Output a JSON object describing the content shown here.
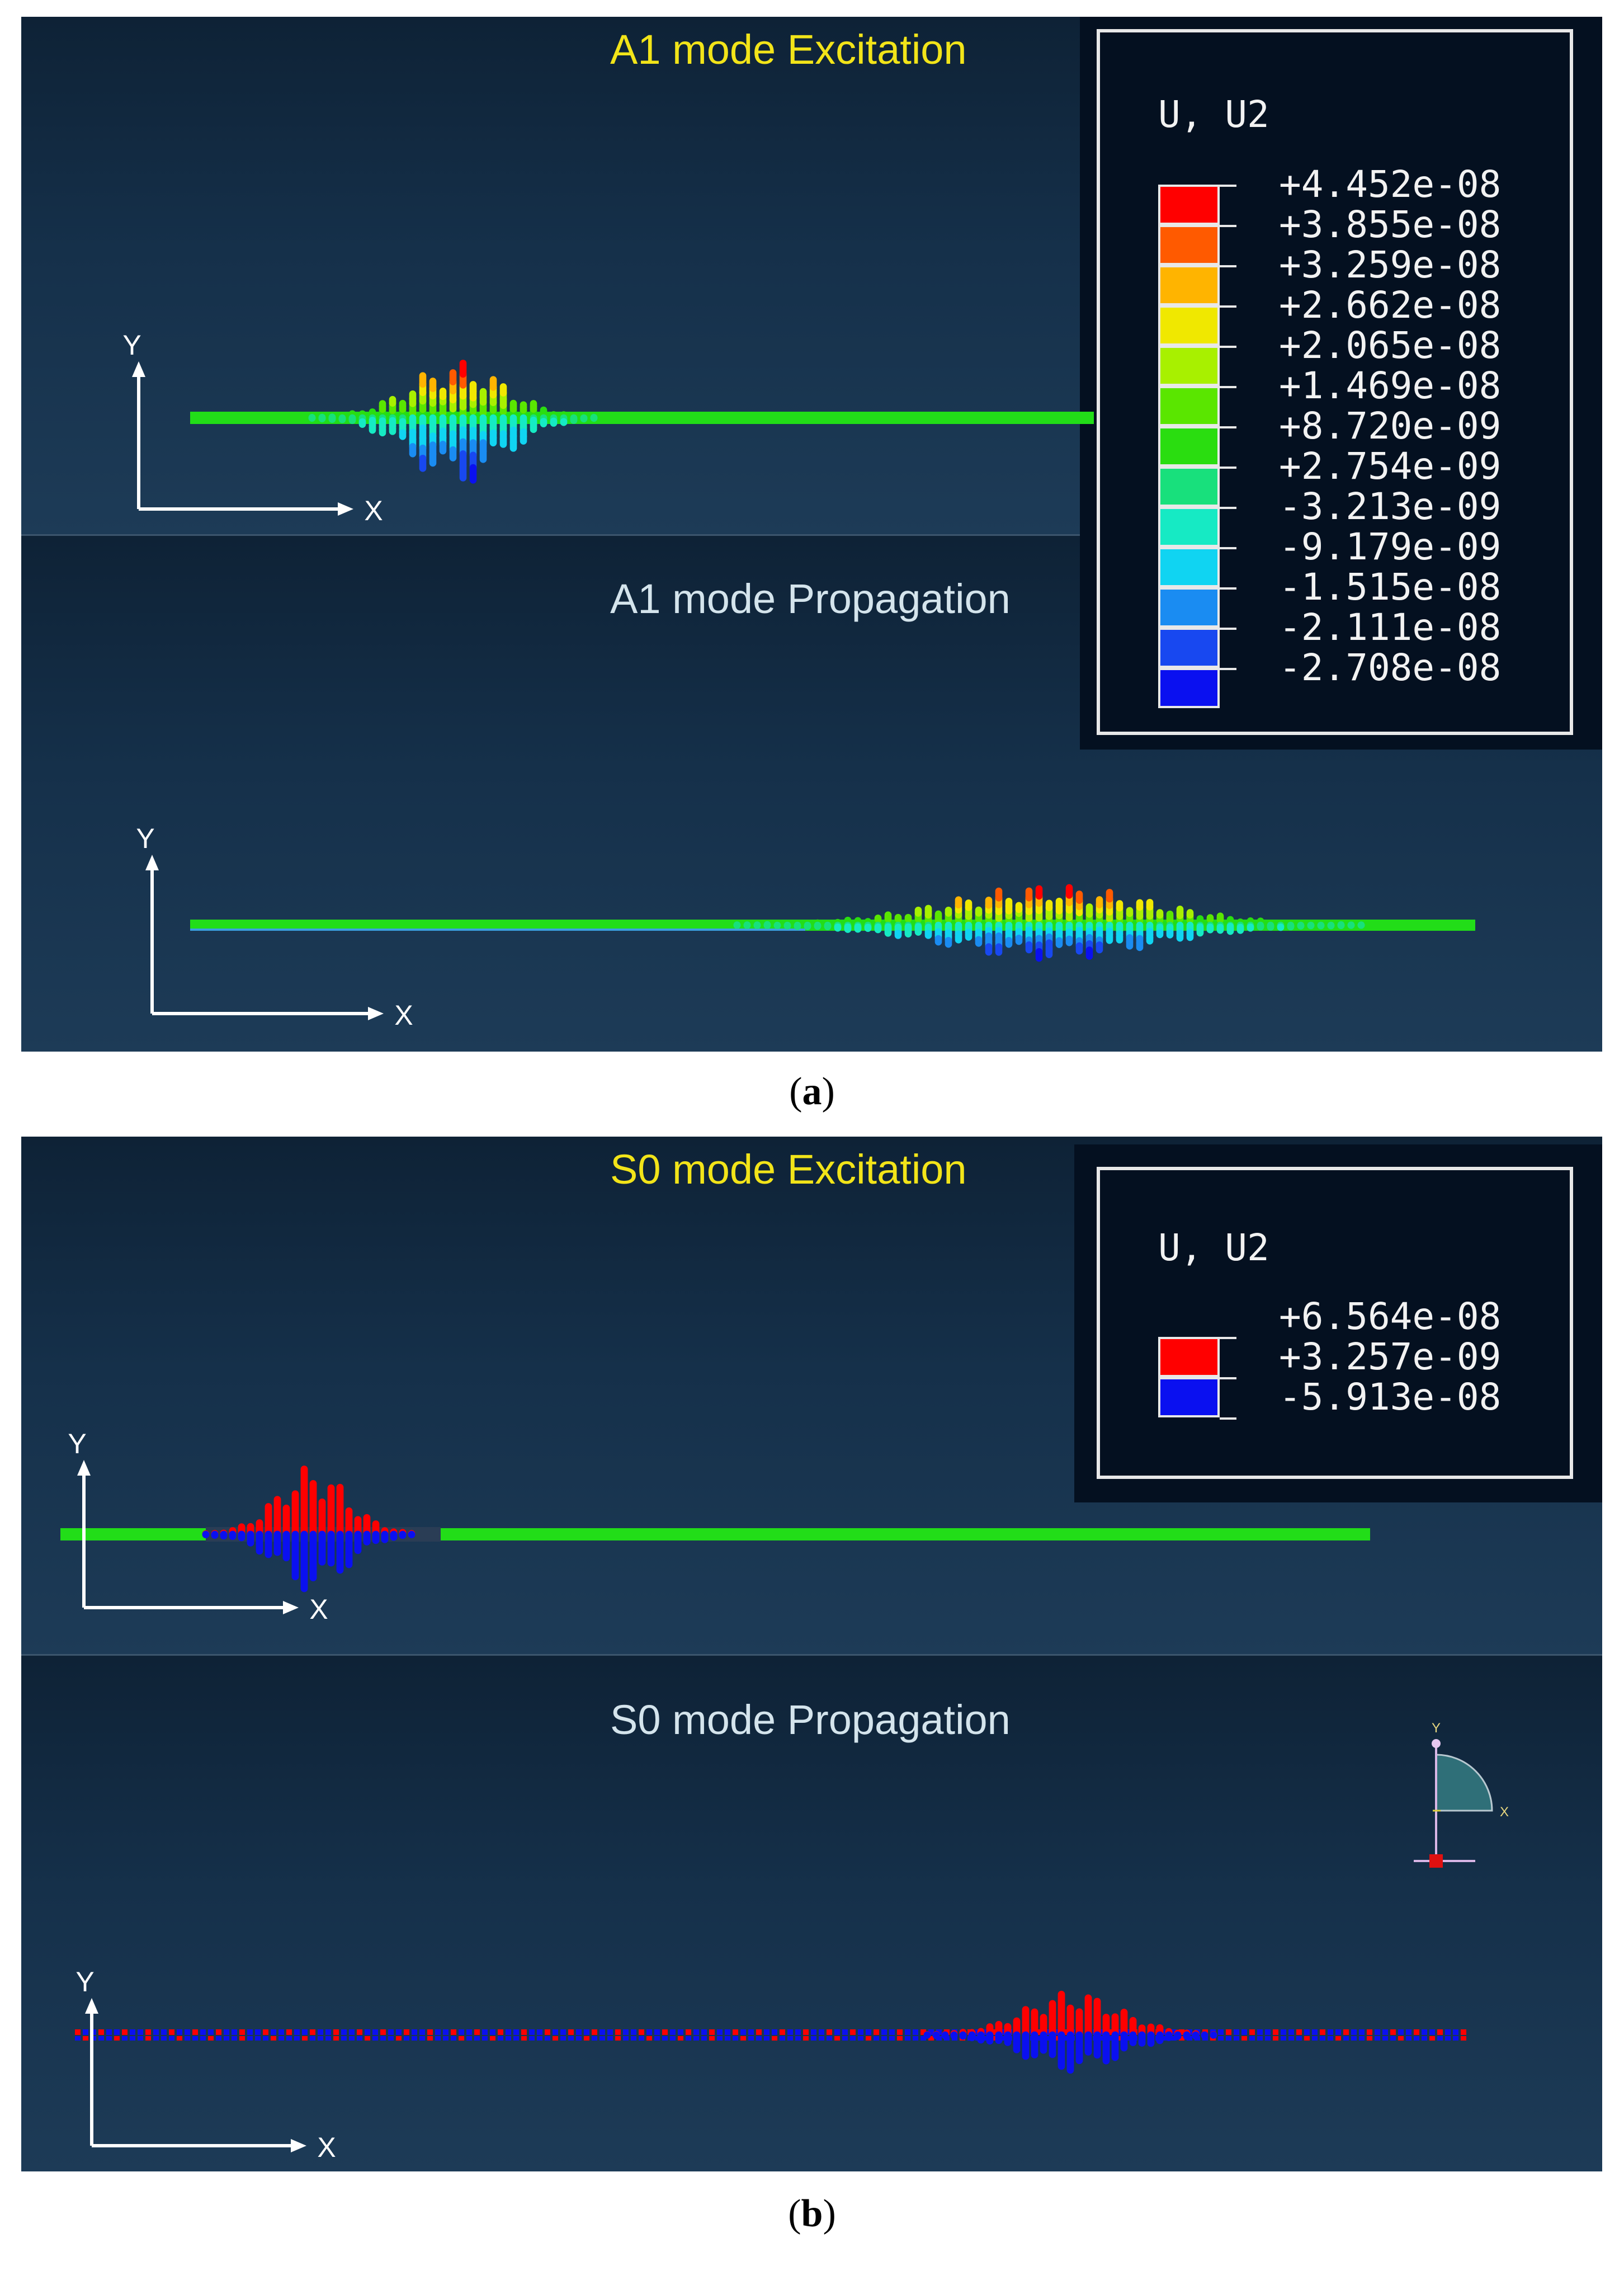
{
  "panel_a": {
    "caption": "a",
    "top_title": "A1 mode Excitation",
    "bottom_title": "A1 mode Propagation",
    "legend": {
      "title": "U, U2",
      "entries": [
        {
          "value": "+4.452e-08",
          "color": "#ff0000"
        },
        {
          "value": "+3.855e-08",
          "color": "#ff5a00"
        },
        {
          "value": "+3.259e-08",
          "color": "#ffb400"
        },
        {
          "value": "+2.662e-08",
          "color": "#f0e800"
        },
        {
          "value": "+2.065e-08",
          "color": "#a8f000"
        },
        {
          "value": "+1.469e-08",
          "color": "#5ae600"
        },
        {
          "value": "+8.720e-09",
          "color": "#2add10"
        },
        {
          "value": "+2.754e-09",
          "color": "#18e07c"
        },
        {
          "value": "-3.213e-09",
          "color": "#16eac4"
        },
        {
          "value": "-9.179e-09",
          "color": "#10d4f2"
        },
        {
          "value": "-1.515e-08",
          "color": "#1a8cf2"
        },
        {
          "value": "-2.111e-08",
          "color": "#1848f0"
        },
        {
          "value": "-2.708e-08",
          "color": "#0a10f0"
        }
      ]
    },
    "axes": {
      "x": "X",
      "y": "Y"
    }
  },
  "panel_b": {
    "caption": "b",
    "top_title": "S0 mode Excitation",
    "bottom_title": "S0 mode Propagation",
    "legend": {
      "title": "U, U2",
      "entries": [
        {
          "value": "+6.564e-08",
          "color": "#ff0000"
        },
        {
          "value": "+3.257e-09",
          "color": "#0a10f0"
        },
        {
          "value": "-5.913e-08",
          "color": ""
        }
      ]
    },
    "axes": {
      "x": "X",
      "y": "Y"
    },
    "triad": {
      "y": "Y",
      "x": "X"
    }
  },
  "colors": {
    "green_plate": "#22dd18",
    "red": "#ff0000",
    "blue": "#0a10f0"
  }
}
